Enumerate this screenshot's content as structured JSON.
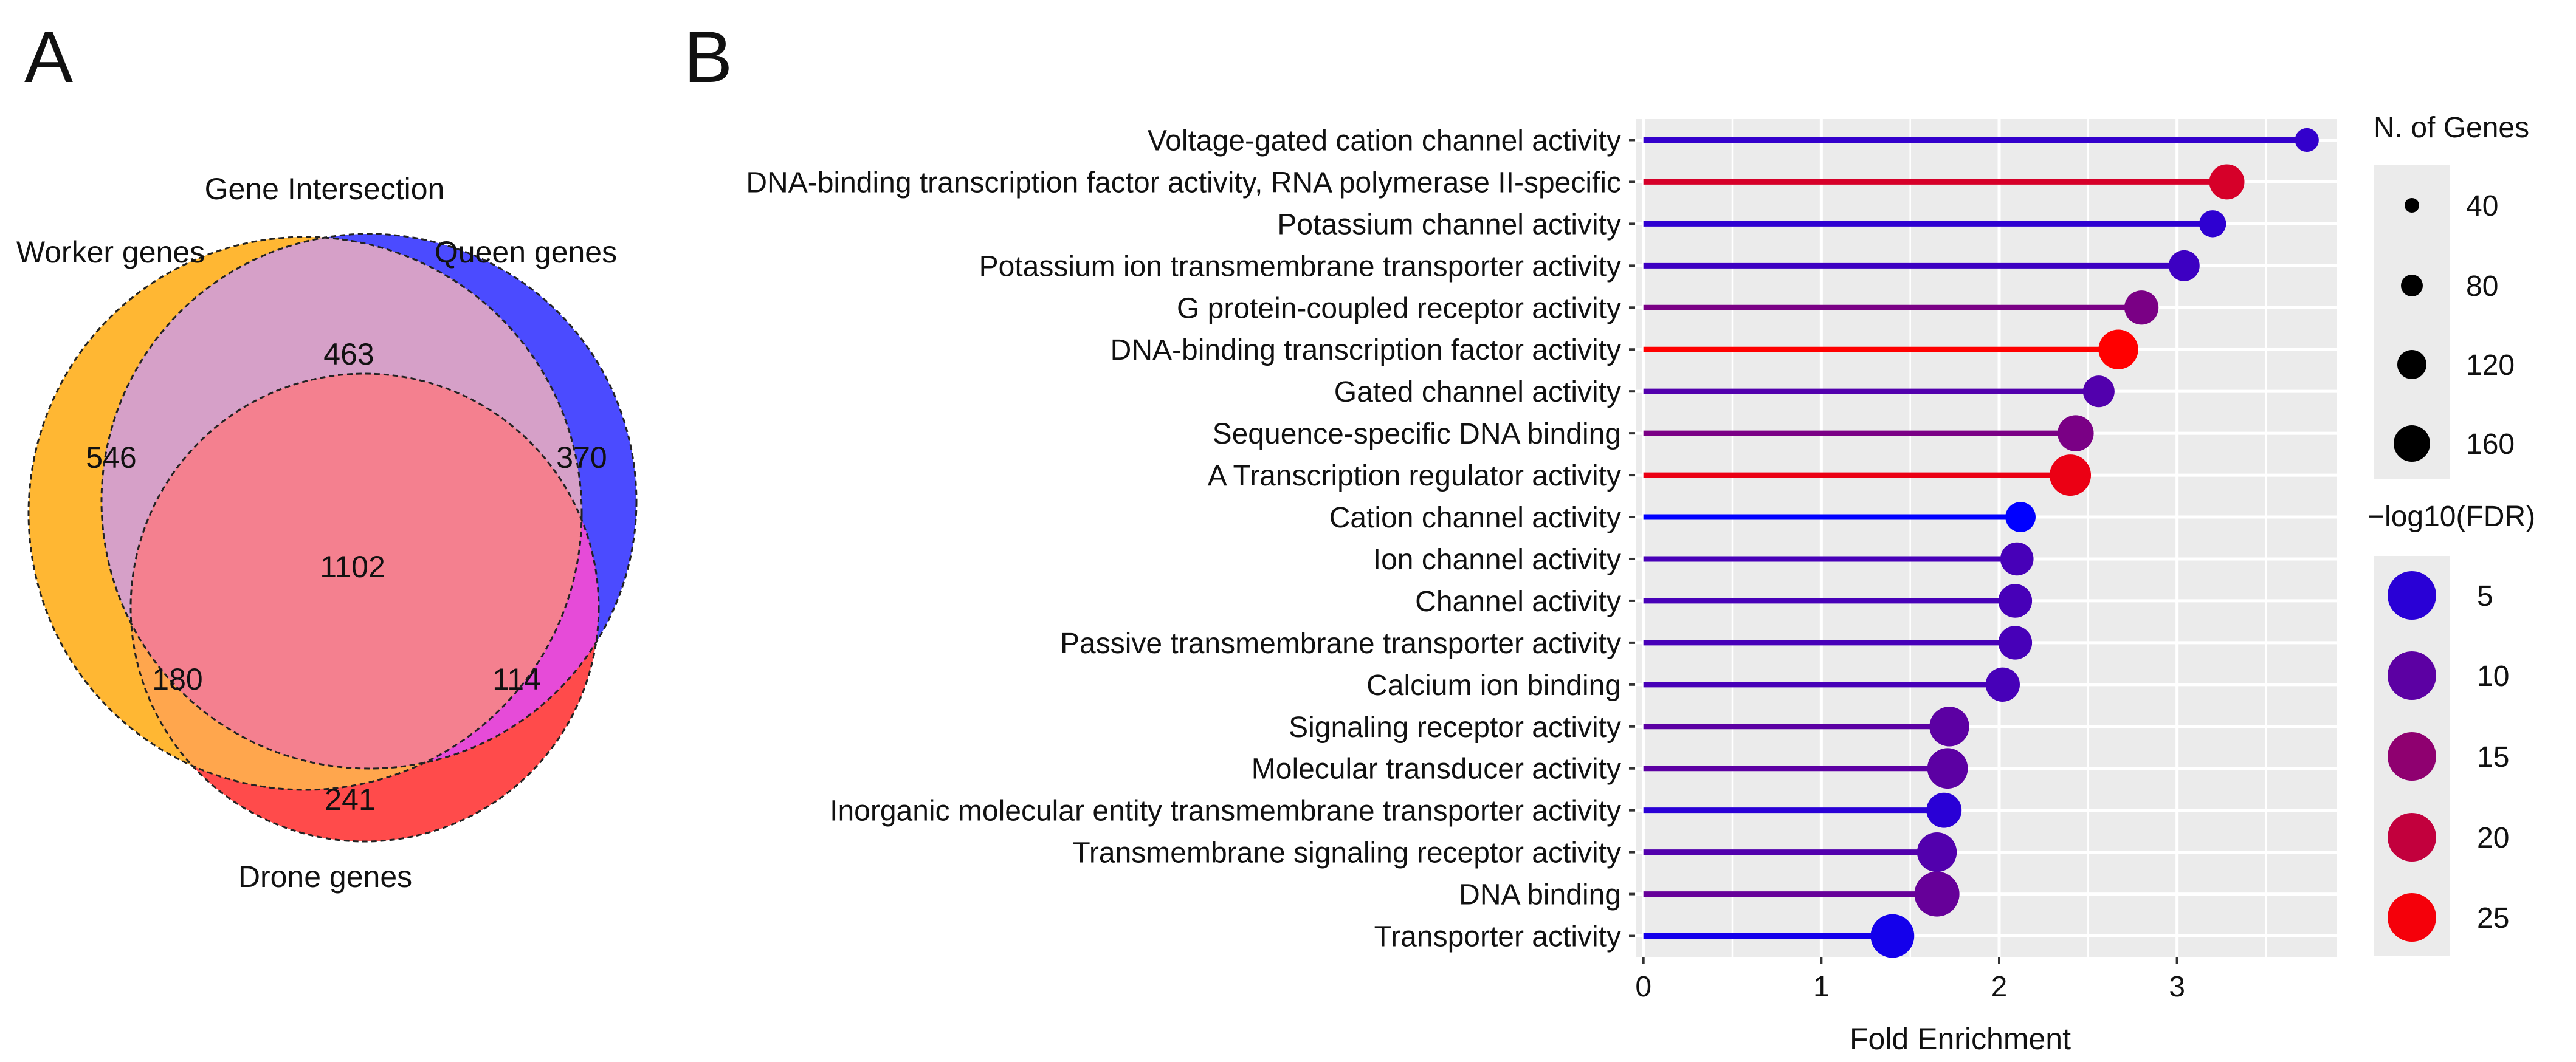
{
  "panels": {
    "a": "A",
    "b": "B"
  },
  "venn": {
    "title": "Gene Intersection",
    "sets": {
      "worker": {
        "label": "Worker genes",
        "color": "#FFB733"
      },
      "queen": {
        "label": "Queen genes",
        "color": "#4B4BFF"
      },
      "drone": {
        "label": "Drone genes",
        "color": "#FF4B4B"
      }
    },
    "regions": {
      "worker_only": 546,
      "queen_only": 370,
      "drone_only": 241,
      "worker_queen": 463,
      "worker_drone": 180,
      "queen_drone": 114,
      "all": 1102
    },
    "region_colors": {
      "worker_queen": "#D6A0C8",
      "worker_drone": "#FFA64D",
      "queen_drone": "#E64BD8",
      "all": "#F4808F"
    }
  },
  "chart_data": {
    "type": "lollipop",
    "xlabel": "Fold Enrichment",
    "xlim": [
      -0.04,
      3.9
    ],
    "xticks": [
      0,
      1,
      2,
      3
    ],
    "categories": [
      "Voltage-gated cation channel activity",
      "DNA-binding transcription factor activity, RNA polymerase II-specific",
      "Potassium channel activity",
      "Potassium ion transmembrane transporter activity",
      "G protein-coupled receptor activity",
      "DNA-binding transcription factor activity",
      "Gated channel activity",
      "Sequence-specific DNA binding",
      "A Transcription regulator activity",
      "Cation channel activity",
      "Ion channel activity",
      "Channel activity",
      "Passive transmembrane transporter activity",
      "Calcium ion binding",
      "Signaling receptor activity",
      "Molecular transducer activity",
      "Inorganic molecular entity transmembrane transporter activity",
      "Transmembrane signaling receptor activity",
      "DNA binding",
      "Transporter activity"
    ],
    "fold_enrichment": [
      3.73,
      3.28,
      3.2,
      3.04,
      2.8,
      2.67,
      2.56,
      2.43,
      2.4,
      2.12,
      2.1,
      2.09,
      2.09,
      2.02,
      1.72,
      1.71,
      1.69,
      1.65,
      1.65,
      1.4
    ],
    "n_genes": [
      20,
      65,
      30,
      45,
      60,
      90,
      48,
      70,
      100,
      42,
      55,
      58,
      58,
      60,
      90,
      95,
      65,
      90,
      125,
      115
    ],
    "neg_log10_fdr": [
      6,
      22,
      5.5,
      7,
      13,
      26,
      9,
      13,
      24,
      1,
      8,
      8,
      8,
      8,
      10,
      10,
      5,
      9,
      11,
      3
    ],
    "legend_size": {
      "title": "N. of Genes",
      "values": [
        40,
        80,
        120,
        160
      ]
    },
    "legend_color": {
      "title": "−log10(FDR)",
      "values": [
        5,
        10,
        15,
        20,
        25
      ]
    },
    "color_scale": {
      "low": "#0000FF",
      "high": "#FF0000"
    }
  }
}
